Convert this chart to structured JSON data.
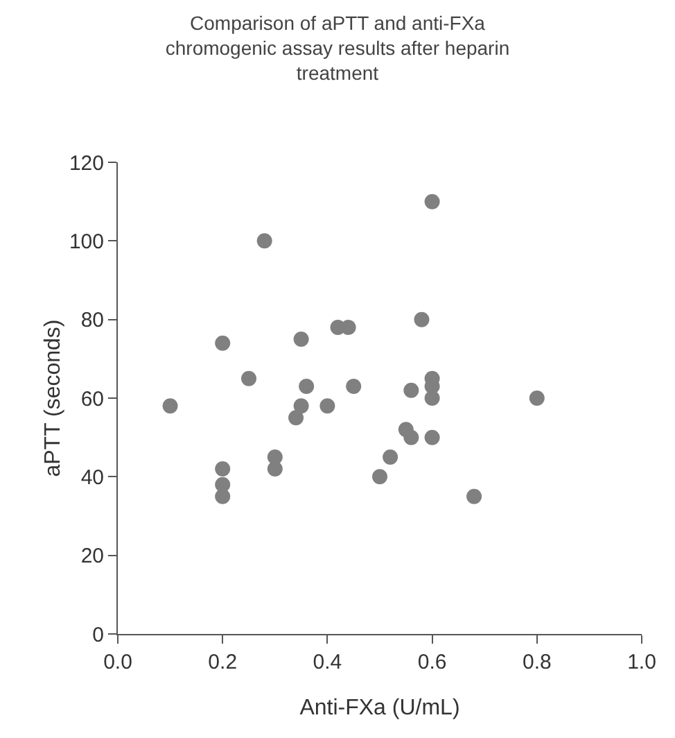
{
  "chart_data": {
    "type": "scatter",
    "title": "Comparison of aPTT and anti-FXa chromogenic assay results after heparin treatment",
    "xlabel": "Anti-FXa (U/mL)",
    "ylabel": "aPTT (seconds)",
    "x": [
      0.1,
      0.2,
      0.2,
      0.2,
      0.2,
      0.25,
      0.28,
      0.3,
      0.3,
      0.34,
      0.35,
      0.35,
      0.36,
      0.4,
      0.42,
      0.44,
      0.45,
      0.5,
      0.52,
      0.55,
      0.56,
      0.56,
      0.58,
      0.6,
      0.6,
      0.6,
      0.6,
      0.6,
      0.68,
      0.8
    ],
    "series": [
      {
        "color": "#808080",
        "values": [
          58,
          74,
          42,
          38,
          35,
          65,
          100,
          45,
          42,
          55,
          58,
          75,
          63,
          58,
          78,
          78,
          63,
          40,
          45,
          52,
          50,
          62,
          80,
          110,
          65,
          63,
          60,
          50,
          35,
          60
        ]
      }
    ],
    "xlim": [
      0,
      1
    ],
    "xticks": [
      {
        "value": 0,
        "label": "0.0"
      },
      0.2,
      0.4,
      0.6,
      0.8,
      {
        "value": 1,
        "label": "1.0"
      }
    ],
    "ylim": [
      0,
      120
    ],
    "yticks": [
      0,
      20,
      40,
      60,
      80,
      100,
      120
    ],
    "grid": false,
    "legend": false,
    "marker": "circle"
  }
}
